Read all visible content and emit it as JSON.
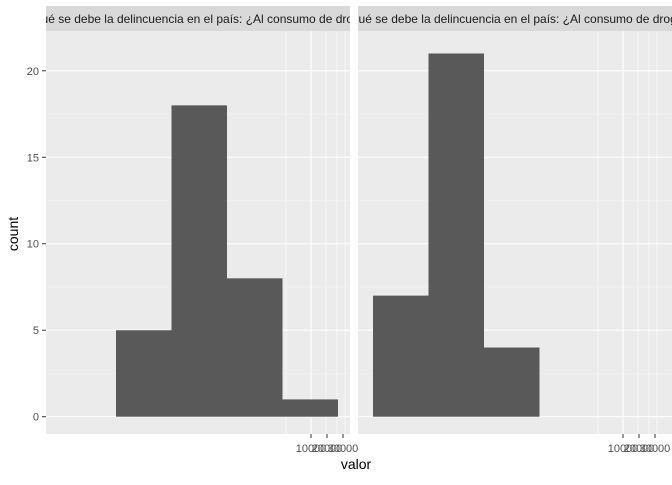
{
  "chart_data": {
    "type": "bar",
    "ylabel": "count",
    "xlabel": "valor",
    "ylim": [
      -1,
      22.3
    ],
    "yticks": [
      0,
      5,
      10,
      15,
      20
    ],
    "x_scale": "log",
    "x_tick_labels": [
      "10000",
      "20000",
      "30000"
    ],
    "bar_color": "#595959",
    "panel_bg": "#ebebeb",
    "strip_bg": "#d9d9d9",
    "panels": [
      {
        "strip_label": "¿A qué se debe la delincuencia en el país: ¿Al consumo de drogas?",
        "bins": [
          {
            "count": 5
          },
          {
            "count": 18
          },
          {
            "count": 8
          },
          {
            "count": 1
          }
        ]
      },
      {
        "strip_label": "¿A qué se debe la delincuencia en el país: ¿Al consumo de drogas?",
        "bins": [
          {
            "count": 7
          },
          {
            "count": 21
          },
          {
            "count": 4
          }
        ]
      }
    ]
  }
}
